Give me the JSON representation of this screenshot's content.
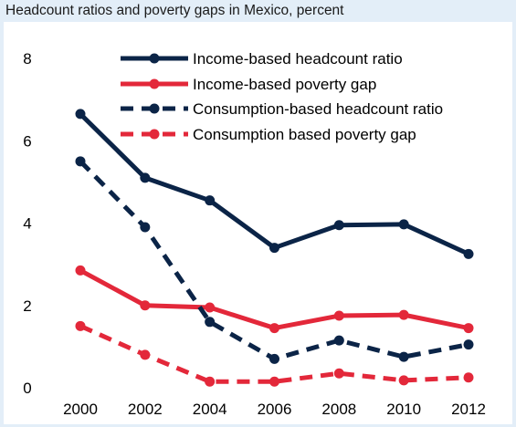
{
  "chart_data": {
    "type": "line",
    "title": "Headcount ratios and poverty gaps in Mexico, percent",
    "xlabel": "",
    "ylabel": "",
    "x": [
      2000,
      2002,
      2004,
      2006,
      2008,
      2010,
      2012
    ],
    "ylim": [
      0,
      8
    ],
    "yticks": [
      0,
      2,
      4,
      6,
      8
    ],
    "grid": false,
    "legend_placement": "top-right",
    "series": [
      {
        "name": "Income-based headcount ratio",
        "values": [
          6.65,
          5.1,
          4.55,
          3.4,
          3.95,
          3.97,
          3.25
        ],
        "color": "#0b2447",
        "style": "solid"
      },
      {
        "name": "Income-based poverty gap",
        "values": [
          2.85,
          2.0,
          1.95,
          1.45,
          1.75,
          1.77,
          1.45
        ],
        "color": "#e3283a",
        "style": "solid"
      },
      {
        "name": "Consumption-based headcount ratio",
        "values": [
          5.5,
          3.9,
          1.6,
          0.7,
          1.15,
          0.75,
          1.05
        ],
        "color": "#0b2447",
        "style": "dashed"
      },
      {
        "name": "Consumption based poverty gap",
        "values": [
          1.5,
          0.8,
          0.15,
          0.15,
          0.35,
          0.18,
          0.25
        ],
        "color": "#e3283a",
        "style": "dashed"
      }
    ]
  }
}
